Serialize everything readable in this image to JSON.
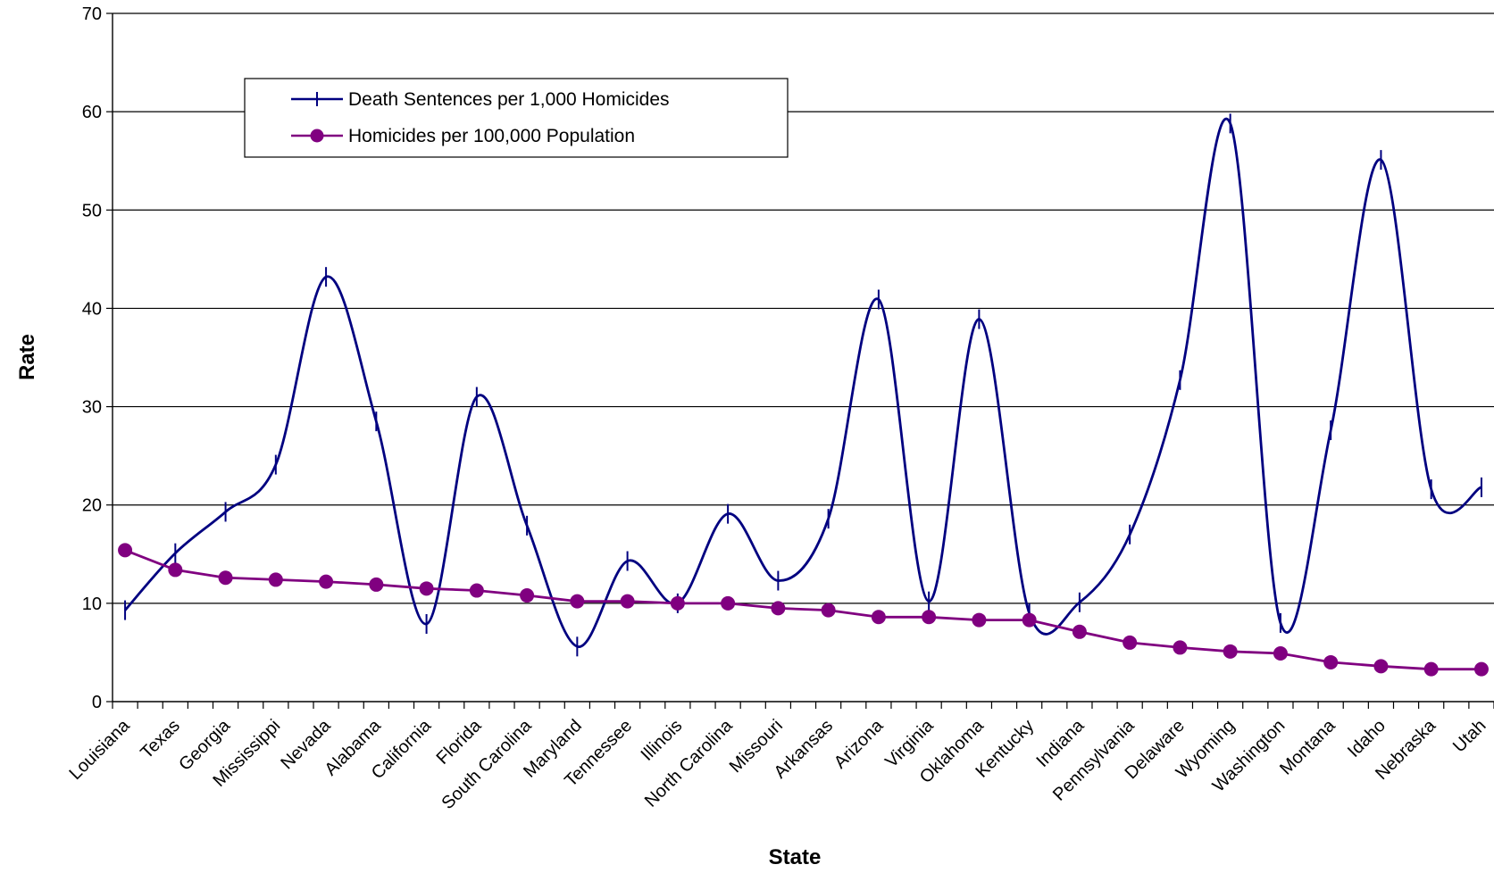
{
  "chart_data": {
    "type": "line",
    "title": "",
    "xlabel": "State",
    "ylabel": "Rate",
    "ylim": [
      0,
      70
    ],
    "yticks": [
      0,
      10,
      20,
      30,
      40,
      50,
      60,
      70
    ],
    "grid": "horizontal",
    "legend_position": "upper-left",
    "categories": [
      "Louisiana",
      "Texas",
      "Georgia",
      "Mississippi",
      "Nevada",
      "Alabama",
      "California",
      "Florida",
      "South Carolina",
      "Maryland",
      "Tennessee",
      "Illinois",
      "North Carolina",
      "Missouri",
      "Arkansas",
      "Arizona",
      "Virginia",
      "Oklahoma",
      "Kentucky",
      "Indiana",
      "Pennsylvania",
      "Delaware",
      "Wyoming",
      "Washington",
      "Montana",
      "Idaho",
      "Nebraska",
      "Utah"
    ],
    "x_points": [
      "Louisiana",
      "",
      "Texas",
      "",
      "Georgia",
      "",
      "Mississippi",
      "",
      "Nevada",
      "",
      "Alabama",
      "",
      "California",
      "",
      "Florida",
      "",
      "South Carolina",
      "",
      "Maryland",
      "",
      "Tennessee",
      "",
      "Illinois",
      "",
      "North Carolina",
      "",
      "Missouri",
      "",
      "Arkansas",
      "",
      "Arizona",
      "",
      "Virginia",
      "",
      "Oklahoma",
      "",
      "Kentucky",
      "",
      "Indiana",
      "",
      "Pennsylvania",
      "",
      "Delaware",
      "",
      "Wyoming",
      "",
      "Washington",
      "",
      "Montana",
      "",
      "Idaho",
      "",
      "Nebraska",
      "",
      "Utah"
    ],
    "series": [
      {
        "name": "Death Sentences per 1,000 Homicides",
        "color": "#000080",
        "marker": "plus",
        "values": [
          9.3,
          15.1,
          19.3,
          24.1,
          43.2,
          28.5,
          7.9,
          31.0,
          17.9,
          5.6,
          14.3,
          10.0,
          19.1,
          12.3,
          18.6,
          40.9,
          10.2,
          38.9,
          9.0,
          10.1,
          17.0,
          32.7,
          58.8,
          8.0,
          27.6,
          55.1,
          21.6,
          21.8
        ]
      },
      {
        "name": "Homicides per 100,000 Population",
        "color": "#800080",
        "marker": "circle",
        "values": [
          15.4,
          13.4,
          12.6,
          12.4,
          12.2,
          11.9,
          11.5,
          11.3,
          10.8,
          10.2,
          10.2,
          10.0,
          10.0,
          9.5,
          9.3,
          8.6,
          8.6,
          8.3,
          8.3,
          7.1,
          6.0,
          5.5,
          5.1,
          4.9,
          4.0,
          3.6,
          3.3,
          3.3
        ]
      }
    ]
  }
}
